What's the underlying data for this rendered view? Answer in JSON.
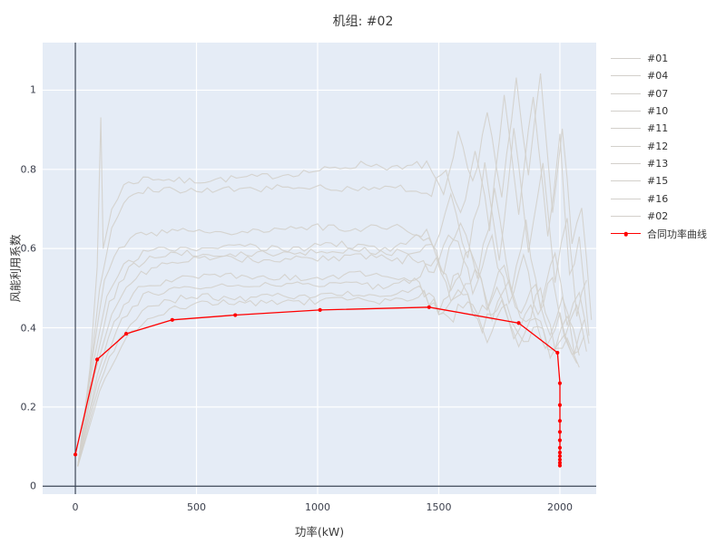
{
  "title": "机组: #02",
  "chart_data": {
    "type": "line",
    "title": "机组: #02",
    "xlabel": "功率(kW)",
    "ylabel": "风能利用系数",
    "xlim": [
      -135,
      2150
    ],
    "ylim": [
      -0.02,
      1.12
    ],
    "xticks": {
      "values": [
        0,
        500,
        1000,
        1500,
        2000
      ],
      "labels": [
        "0",
        "500",
        "1000",
        "1500",
        "2000"
      ]
    },
    "yticks": {
      "values": [
        0,
        0.2,
        0.4,
        0.6,
        0.8,
        1
      ],
      "labels": [
        "0",
        "0.2",
        "0.4",
        "0.6",
        "0.8",
        "1"
      ]
    },
    "grid": true,
    "legend_position": "right-outside",
    "colors": {
      "plot_bg": "#e5ecf6",
      "grid": "#ffffff",
      "zeroline": "#3a4556",
      "gray_series": "#d3d0cb",
      "contract": "#ff0000",
      "text": "#333333"
    },
    "series": [
      {
        "name": "#01",
        "points": [
          [
            10,
            0.05
          ],
          [
            60,
            0.3
          ],
          [
            90,
            0.55
          ],
          [
            105,
            0.93
          ],
          [
            115,
            0.6
          ],
          [
            150,
            0.7
          ],
          [
            200,
            0.76
          ],
          [
            300,
            0.78
          ],
          [
            450,
            0.77
          ],
          [
            600,
            0.775
          ],
          [
            750,
            0.78
          ],
          [
            900,
            0.79
          ],
          [
            1050,
            0.8
          ],
          [
            1200,
            0.815
          ],
          [
            1350,
            0.8
          ],
          [
            1450,
            0.82
          ],
          [
            1520,
            0.72
          ],
          [
            1580,
            0.88
          ],
          [
            1640,
            0.76
          ],
          [
            1700,
            0.95
          ],
          [
            1760,
            0.72
          ],
          [
            1820,
            1.02
          ],
          [
            1870,
            0.78
          ],
          [
            1920,
            1.04
          ],
          [
            1970,
            0.7
          ],
          [
            2010,
            0.92
          ],
          [
            2050,
            0.6
          ],
          [
            2090,
            0.72
          ],
          [
            2130,
            0.42
          ]
        ]
      },
      {
        "name": "#04",
        "points": [
          [
            10,
            0.05
          ],
          [
            60,
            0.28
          ],
          [
            100,
            0.5
          ],
          [
            150,
            0.65
          ],
          [
            200,
            0.72
          ],
          [
            300,
            0.75
          ],
          [
            500,
            0.745
          ],
          [
            700,
            0.75
          ],
          [
            900,
            0.755
          ],
          [
            1100,
            0.75
          ],
          [
            1300,
            0.76
          ],
          [
            1450,
            0.73
          ],
          [
            1530,
            0.8
          ],
          [
            1590,
            0.68
          ],
          [
            1650,
            0.86
          ],
          [
            1710,
            0.66
          ],
          [
            1770,
            0.98
          ],
          [
            1830,
            0.7
          ],
          [
            1890,
            1.0
          ],
          [
            1950,
            0.62
          ],
          [
            2000,
            0.88
          ],
          [
            2040,
            0.52
          ],
          [
            2080,
            0.62
          ],
          [
            2120,
            0.38
          ]
        ]
      },
      {
        "name": "#07",
        "points": [
          [
            10,
            0.05
          ],
          [
            70,
            0.32
          ],
          [
            120,
            0.52
          ],
          [
            180,
            0.6
          ],
          [
            250,
            0.635
          ],
          [
            400,
            0.645
          ],
          [
            600,
            0.64
          ],
          [
            800,
            0.65
          ],
          [
            1000,
            0.655
          ],
          [
            1200,
            0.65
          ],
          [
            1350,
            0.66
          ],
          [
            1480,
            0.6
          ],
          [
            1550,
            0.72
          ],
          [
            1620,
            0.58
          ],
          [
            1690,
            0.8
          ],
          [
            1750,
            0.56
          ],
          [
            1810,
            0.9
          ],
          [
            1870,
            0.6
          ],
          [
            1930,
            0.82
          ],
          [
            1980,
            0.52
          ],
          [
            2030,
            0.68
          ],
          [
            2070,
            0.44
          ],
          [
            2110,
            0.52
          ]
        ]
      },
      {
        "name": "#10",
        "points": [
          [
            10,
            0.05
          ],
          [
            70,
            0.3
          ],
          [
            130,
            0.48
          ],
          [
            200,
            0.56
          ],
          [
            300,
            0.595
          ],
          [
            500,
            0.6
          ],
          [
            700,
            0.605
          ],
          [
            900,
            0.6
          ],
          [
            1100,
            0.61
          ],
          [
            1300,
            0.6
          ],
          [
            1450,
            0.64
          ],
          [
            1520,
            0.54
          ],
          [
            1590,
            0.68
          ],
          [
            1660,
            0.52
          ],
          [
            1730,
            0.74
          ],
          [
            1800,
            0.5
          ],
          [
            1860,
            0.66
          ],
          [
            1920,
            0.46
          ],
          [
            1980,
            0.58
          ],
          [
            2030,
            0.42
          ],
          [
            2080,
            0.5
          ],
          [
            2120,
            0.36
          ]
        ]
      },
      {
        "name": "#11",
        "points": [
          [
            10,
            0.05
          ],
          [
            80,
            0.3
          ],
          [
            140,
            0.46
          ],
          [
            220,
            0.55
          ],
          [
            350,
            0.585
          ],
          [
            550,
            0.59
          ],
          [
            750,
            0.585
          ],
          [
            950,
            0.59
          ],
          [
            1150,
            0.595
          ],
          [
            1350,
            0.59
          ],
          [
            1480,
            0.55
          ],
          [
            1560,
            0.64
          ],
          [
            1640,
            0.5
          ],
          [
            1720,
            0.62
          ],
          [
            1790,
            0.46
          ],
          [
            1850,
            0.58
          ],
          [
            1910,
            0.42
          ],
          [
            1970,
            0.54
          ],
          [
            2020,
            0.38
          ],
          [
            2070,
            0.46
          ],
          [
            2110,
            0.34
          ]
        ]
      },
      {
        "name": "#12",
        "points": [
          [
            10,
            0.05
          ],
          [
            80,
            0.28
          ],
          [
            150,
            0.44
          ],
          [
            250,
            0.53
          ],
          [
            400,
            0.57
          ],
          [
            600,
            0.575
          ],
          [
            800,
            0.57
          ],
          [
            1000,
            0.575
          ],
          [
            1200,
            0.58
          ],
          [
            1350,
            0.57
          ],
          [
            1470,
            0.62
          ],
          [
            1550,
            0.5
          ],
          [
            1630,
            0.6
          ],
          [
            1700,
            0.46
          ],
          [
            1770,
            0.56
          ],
          [
            1840,
            0.42
          ],
          [
            1900,
            0.52
          ],
          [
            1960,
            0.38
          ],
          [
            2010,
            0.48
          ],
          [
            2060,
            0.35
          ],
          [
            2100,
            0.42
          ]
        ]
      },
      {
        "name": "#13",
        "points": [
          [
            10,
            0.05
          ],
          [
            90,
            0.28
          ],
          [
            160,
            0.42
          ],
          [
            260,
            0.5
          ],
          [
            420,
            0.525
          ],
          [
            620,
            0.53
          ],
          [
            820,
            0.525
          ],
          [
            1020,
            0.53
          ],
          [
            1220,
            0.535
          ],
          [
            1380,
            0.52
          ],
          [
            1490,
            0.56
          ],
          [
            1570,
            0.46
          ],
          [
            1650,
            0.55
          ],
          [
            1720,
            0.43
          ],
          [
            1790,
            0.52
          ],
          [
            1860,
            0.4
          ],
          [
            1920,
            0.5
          ],
          [
            1980,
            0.36
          ],
          [
            2030,
            0.44
          ],
          [
            2080,
            0.33
          ]
        ]
      },
      {
        "name": "#15",
        "points": [
          [
            10,
            0.05
          ],
          [
            90,
            0.26
          ],
          [
            170,
            0.4
          ],
          [
            280,
            0.48
          ],
          [
            450,
            0.505
          ],
          [
            650,
            0.51
          ],
          [
            850,
            0.505
          ],
          [
            1050,
            0.51
          ],
          [
            1250,
            0.505
          ],
          [
            1400,
            0.52
          ],
          [
            1500,
            0.45
          ],
          [
            1580,
            0.54
          ],
          [
            1660,
            0.42
          ],
          [
            1740,
            0.5
          ],
          [
            1810,
            0.38
          ],
          [
            1880,
            0.47
          ],
          [
            1940,
            0.35
          ],
          [
            2000,
            0.43
          ],
          [
            2050,
            0.32
          ],
          [
            2100,
            0.38
          ]
        ]
      },
      {
        "name": "#16",
        "points": [
          [
            10,
            0.05
          ],
          [
            100,
            0.26
          ],
          [
            180,
            0.38
          ],
          [
            300,
            0.455
          ],
          [
            480,
            0.48
          ],
          [
            680,
            0.475
          ],
          [
            880,
            0.48
          ],
          [
            1080,
            0.485
          ],
          [
            1280,
            0.48
          ],
          [
            1420,
            0.5
          ],
          [
            1520,
            0.43
          ],
          [
            1600,
            0.5
          ],
          [
            1680,
            0.4
          ],
          [
            1760,
            0.47
          ],
          [
            1830,
            0.37
          ],
          [
            1900,
            0.44
          ],
          [
            1960,
            0.34
          ],
          [
            2020,
            0.4
          ],
          [
            2070,
            0.31
          ]
        ]
      },
      {
        "name": "#02",
        "points": [
          [
            10,
            0.05
          ],
          [
            100,
            0.24
          ],
          [
            190,
            0.36
          ],
          [
            320,
            0.43
          ],
          [
            500,
            0.465
          ],
          [
            700,
            0.46
          ],
          [
            900,
            0.465
          ],
          [
            1100,
            0.47
          ],
          [
            1300,
            0.465
          ],
          [
            1440,
            0.48
          ],
          [
            1540,
            0.41
          ],
          [
            1620,
            0.48
          ],
          [
            1700,
            0.38
          ],
          [
            1780,
            0.45
          ],
          [
            1850,
            0.35
          ],
          [
            1910,
            0.42
          ],
          [
            1970,
            0.33
          ],
          [
            2030,
            0.38
          ],
          [
            2080,
            0.3
          ]
        ]
      }
    ],
    "contract_curve": {
      "name": "合同功率曲线",
      "color": "#ff0000",
      "points": [
        [
          0,
          0.08
        ],
        [
          90,
          0.32
        ],
        [
          210,
          0.385
        ],
        [
          400,
          0.42
        ],
        [
          660,
          0.432
        ],
        [
          1010,
          0.445
        ],
        [
          1460,
          0.452
        ],
        [
          1830,
          0.412
        ],
        [
          1990,
          0.337
        ],
        [
          2000,
          0.26
        ],
        [
          2000,
          0.205
        ],
        [
          2000,
          0.165
        ],
        [
          2000,
          0.137
        ],
        [
          2000,
          0.116
        ],
        [
          2000,
          0.097
        ],
        [
          2000,
          0.085
        ],
        [
          2000,
          0.076
        ],
        [
          2000,
          0.067
        ],
        [
          2000,
          0.059
        ],
        [
          2000,
          0.052
        ]
      ]
    }
  }
}
